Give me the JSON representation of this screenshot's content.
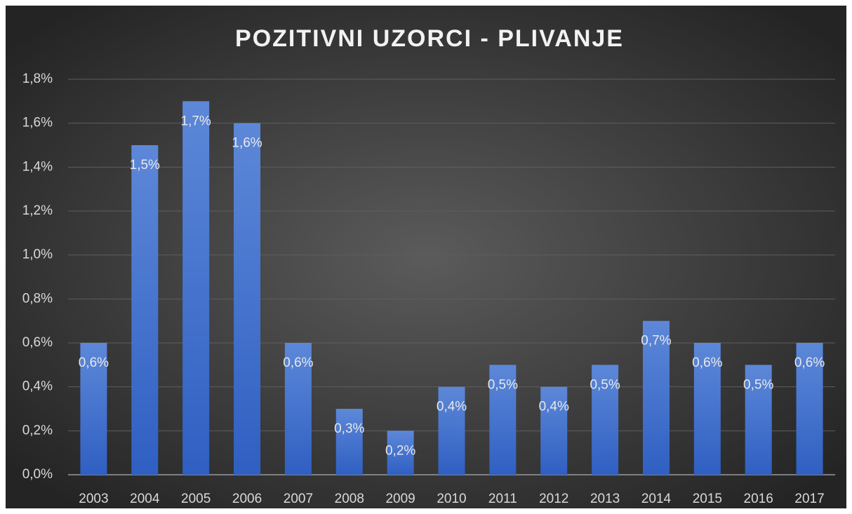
{
  "chart_data": {
    "type": "bar",
    "title": "POZITIVNI UZORCI - PLIVANJE",
    "categories": [
      "2003",
      "2004",
      "2005",
      "2006",
      "2007",
      "2008",
      "2009",
      "2010",
      "2011",
      "2012",
      "2013",
      "2014",
      "2015",
      "2016",
      "2017"
    ],
    "values": [
      0.6,
      1.5,
      1.7,
      1.6,
      0.6,
      0.3,
      0.2,
      0.4,
      0.5,
      0.4,
      0.5,
      0.7,
      0.6,
      0.5,
      0.6
    ],
    "value_labels": [
      "0,6%",
      "1,5%",
      "1,7%",
      "1,6%",
      "0,6%",
      "0,3%",
      "0,2%",
      "0,4%",
      "0,5%",
      "0,4%",
      "0,5%",
      "0,7%",
      "0,6%",
      "0,5%",
      "0,6%"
    ],
    "color": "#4472c4",
    "ylim": [
      0,
      1.8
    ],
    "yticks": [
      {
        "value": 0,
        "label": "0,0%"
      },
      {
        "value": 0.2,
        "label": "0,2%"
      },
      {
        "value": 0.4,
        "label": "0,4%"
      },
      {
        "value": 0.6,
        "label": "0,6%"
      },
      {
        "value": 0.8,
        "label": "0,8%"
      },
      {
        "value": 1.0,
        "label": "1,0%"
      },
      {
        "value": 1.2,
        "label": "1,2%"
      },
      {
        "value": 1.4,
        "label": "1,4%"
      },
      {
        "value": 1.6,
        "label": "1,6%"
      },
      {
        "value": 1.8,
        "label": "1,8%"
      }
    ],
    "grid": true
  }
}
